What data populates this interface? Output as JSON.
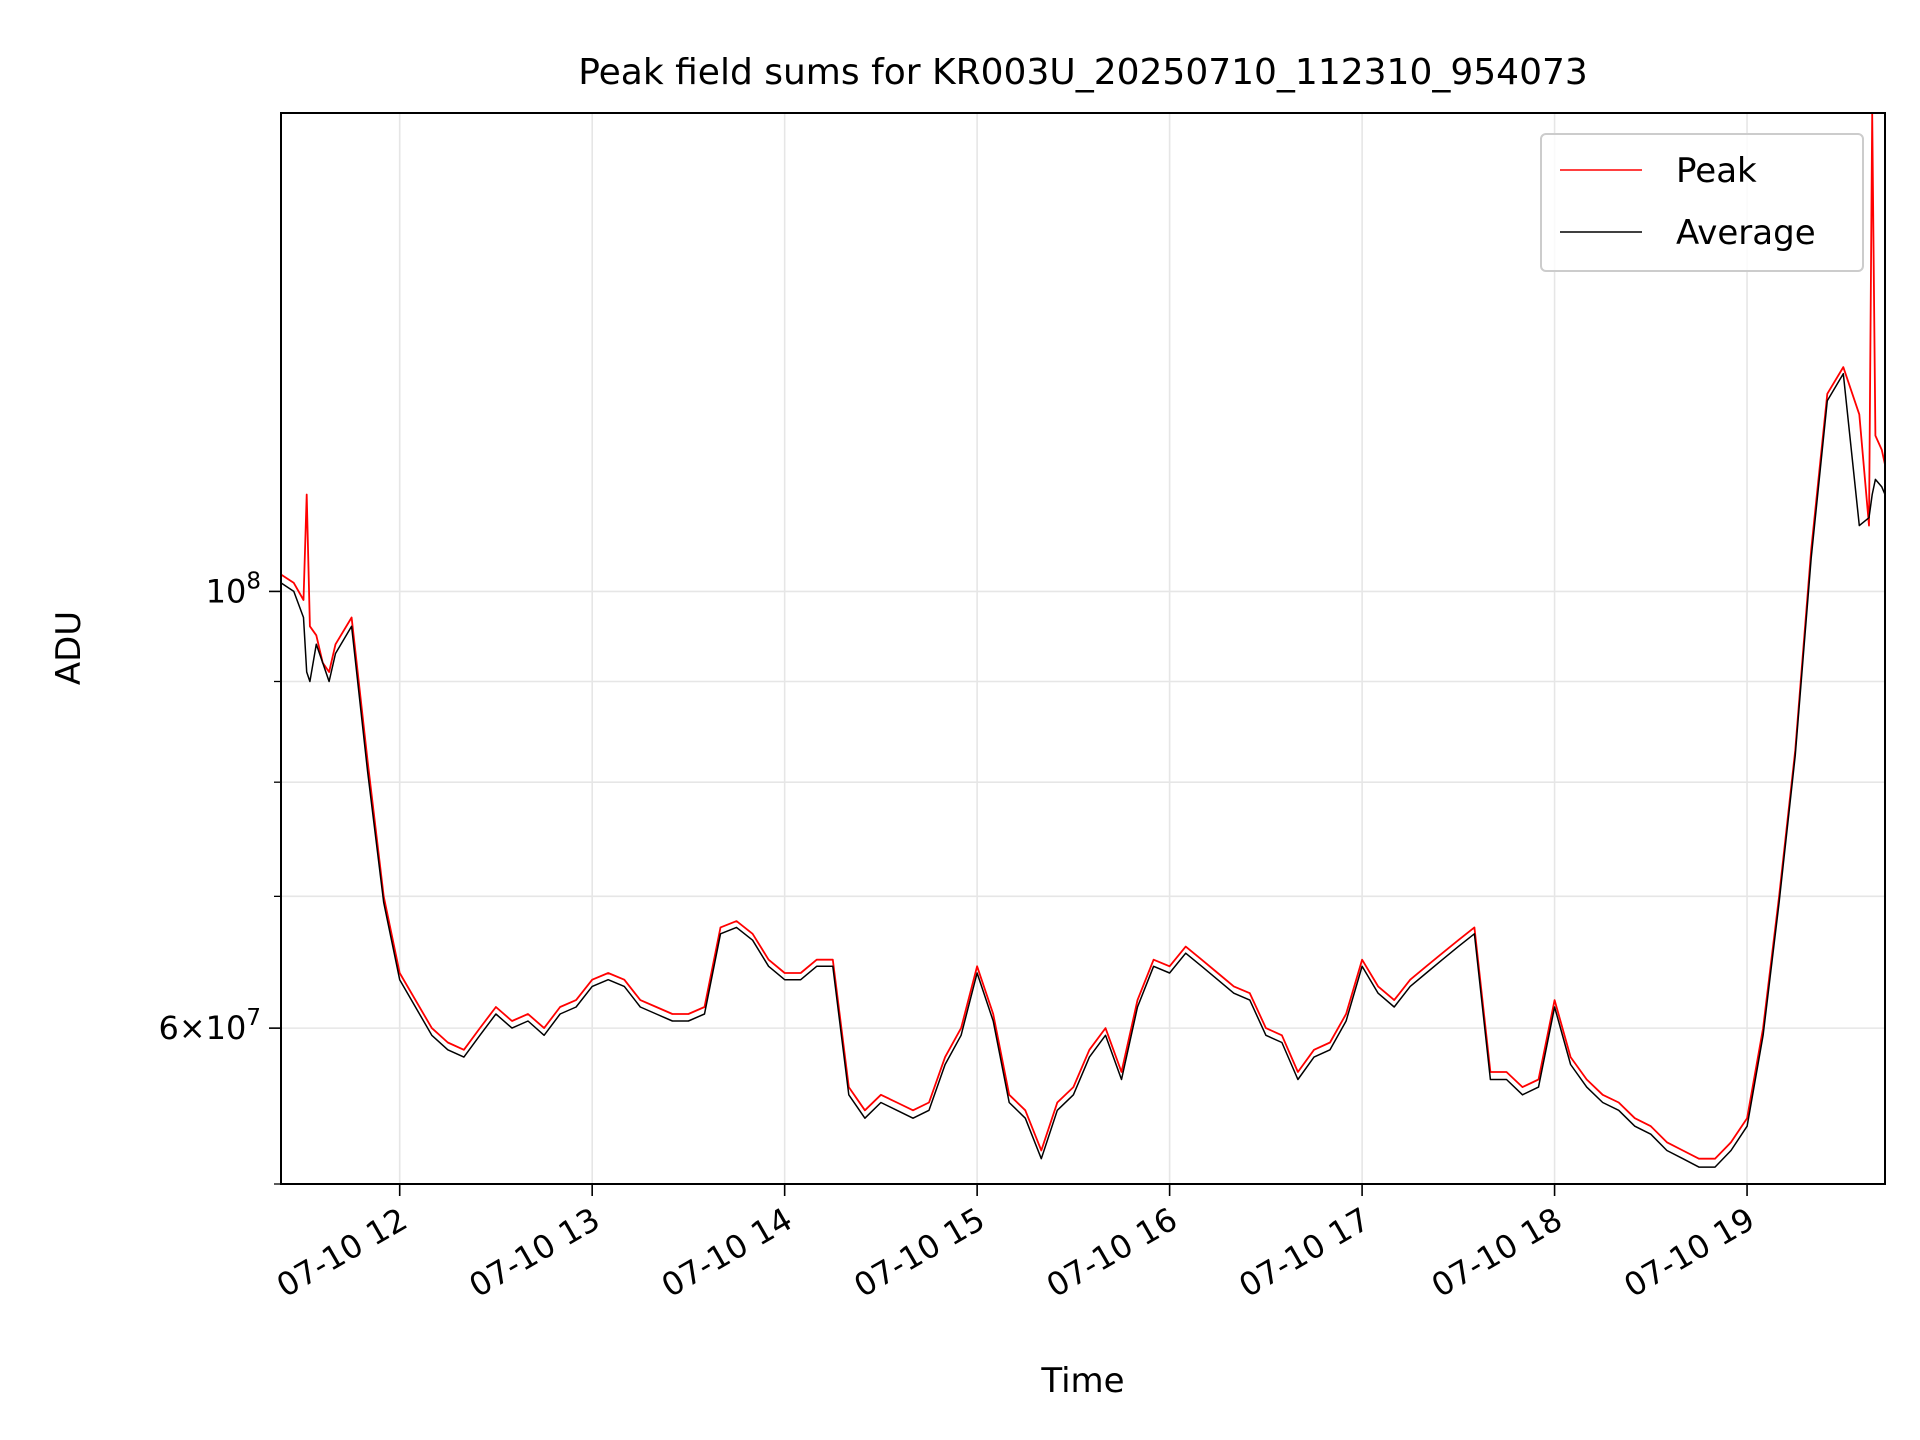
{
  "chart_data": {
    "type": "line",
    "title": "Peak field sums for KR003U_20250710_112310_954073",
    "xlabel": "Time",
    "ylabel": "ADU",
    "yscale": "log",
    "grid": true,
    "legend_position": "top-right",
    "xlim": [
      "2025-07-10 11:23",
      "2025-07-10 19:43"
    ],
    "ylim": [
      50000000,
      175000000
    ],
    "x_ticks": [
      "2025-07-10 12:00",
      "2025-07-10 13:00",
      "2025-07-10 14:00",
      "2025-07-10 15:00",
      "2025-07-10 16:00",
      "2025-07-10 17:00",
      "2025-07-10 18:00",
      "2025-07-10 19:00"
    ],
    "x_tick_labels": [
      "07-10 12",
      "07-10 13",
      "07-10 14",
      "07-10 15",
      "07-10 16",
      "07-10 17",
      "07-10 18",
      "07-10 19"
    ],
    "y_major_ticks": [
      {
        "value": 60000000,
        "mantissa": "6",
        "base": "10",
        "exp": "7"
      },
      {
        "value": 100000000,
        "mantissa": "",
        "base": "10",
        "exp": "8"
      }
    ],
    "y_minor_ticks": [
      50000000,
      70000000,
      80000000,
      90000000
    ],
    "series": [
      {
        "name": "Peak",
        "color": "#ff0000",
        "x": [
          "2025-07-10 11:23",
          "2025-07-10 11:27",
          "2025-07-10 11:30",
          "2025-07-10 11:31",
          "2025-07-10 11:32",
          "2025-07-10 11:34",
          "2025-07-10 11:36",
          "2025-07-10 11:38",
          "2025-07-10 11:40",
          "2025-07-10 11:45",
          "2025-07-10 11:50",
          "2025-07-10 11:55",
          "2025-07-10 12:00",
          "2025-07-10 12:10",
          "2025-07-10 12:15",
          "2025-07-10 12:20",
          "2025-07-10 12:25",
          "2025-07-10 12:30",
          "2025-07-10 12:35",
          "2025-07-10 12:40",
          "2025-07-10 12:45",
          "2025-07-10 12:50",
          "2025-07-10 12:55",
          "2025-07-10 13:00",
          "2025-07-10 13:05",
          "2025-07-10 13:10",
          "2025-07-10 13:15",
          "2025-07-10 13:20",
          "2025-07-10 13:25",
          "2025-07-10 13:30",
          "2025-07-10 13:35",
          "2025-07-10 13:40",
          "2025-07-10 13:45",
          "2025-07-10 13:50",
          "2025-07-10 13:55",
          "2025-07-10 14:00",
          "2025-07-10 14:05",
          "2025-07-10 14:10",
          "2025-07-10 14:15",
          "2025-07-10 14:20",
          "2025-07-10 14:25",
          "2025-07-10 14:30",
          "2025-07-10 14:35",
          "2025-07-10 14:40",
          "2025-07-10 14:45",
          "2025-07-10 14:50",
          "2025-07-10 14:55",
          "2025-07-10 15:00",
          "2025-07-10 15:05",
          "2025-07-10 15:10",
          "2025-07-10 15:15",
          "2025-07-10 15:20",
          "2025-07-10 15:25",
          "2025-07-10 15:30",
          "2025-07-10 15:35",
          "2025-07-10 15:40",
          "2025-07-10 15:45",
          "2025-07-10 15:50",
          "2025-07-10 15:55",
          "2025-07-10 16:00",
          "2025-07-10 16:05",
          "2025-07-10 16:10",
          "2025-07-10 16:15",
          "2025-07-10 16:20",
          "2025-07-10 16:25",
          "2025-07-10 16:30",
          "2025-07-10 16:35",
          "2025-07-10 16:40",
          "2025-07-10 16:45",
          "2025-07-10 16:50",
          "2025-07-10 16:55",
          "2025-07-10 17:00",
          "2025-07-10 17:05",
          "2025-07-10 17:10",
          "2025-07-10 17:15",
          "2025-07-10 17:20",
          "2025-07-10 17:25",
          "2025-07-10 17:30",
          "2025-07-10 17:35",
          "2025-07-10 17:40",
          "2025-07-10 17:45",
          "2025-07-10 17:50",
          "2025-07-10 17:55",
          "2025-07-10 18:00",
          "2025-07-10 18:05",
          "2025-07-10 18:10",
          "2025-07-10 18:15",
          "2025-07-10 18:20",
          "2025-07-10 18:25",
          "2025-07-10 18:30",
          "2025-07-10 18:35",
          "2025-07-10 18:40",
          "2025-07-10 18:45",
          "2025-07-10 18:50",
          "2025-07-10 18:55",
          "2025-07-10 19:00",
          "2025-07-10 19:05",
          "2025-07-10 19:10",
          "2025-07-10 19:15",
          "2025-07-10 19:20",
          "2025-07-10 19:25",
          "2025-07-10 19:30",
          "2025-07-10 19:35",
          "2025-07-10 19:38",
          "2025-07-10 19:39",
          "2025-07-10 19:40",
          "2025-07-10 19:42",
          "2025-07-10 19:43"
        ],
        "values": [
          102000000,
          101000000,
          99000000,
          112000000,
          96000000,
          95000000,
          92000000,
          91000000,
          94000000,
          97000000,
          82000000,
          70000000,
          64000000,
          60000000,
          59000000,
          58500000,
          60000000,
          61500000,
          60500000,
          61000000,
          60000000,
          61500000,
          62000000,
          63500000,
          64000000,
          63500000,
          62000000,
          61500000,
          61000000,
          61000000,
          61500000,
          67500000,
          68000000,
          67000000,
          65000000,
          64000000,
          64000000,
          65000000,
          65000000,
          56000000,
          54500000,
          55500000,
          55000000,
          54500000,
          55000000,
          58000000,
          60000000,
          64500000,
          61000000,
          55500000,
          54500000,
          52000000,
          55000000,
          56000000,
          58500000,
          60000000,
          57000000,
          62000000,
          65000000,
          64500000,
          66000000,
          65000000,
          64000000,
          63000000,
          62500000,
          60000000,
          59500000,
          57000000,
          58500000,
          59000000,
          61000000,
          65000000,
          63000000,
          62000000,
          63500000,
          64500000,
          65500000,
          66500000,
          67500000,
          57000000,
          57000000,
          56000000,
          56500000,
          62000000,
          58000000,
          56500000,
          55500000,
          55000000,
          54000000,
          53500000,
          52500000,
          52000000,
          51500000,
          51500000,
          52500000,
          54000000,
          60000000,
          70000000,
          83000000,
          105000000,
          126000000,
          130000000,
          123000000,
          108000000,
          175000000,
          120000000,
          118000000,
          116000000
        ]
      },
      {
        "name": "Average",
        "color": "#000000",
        "x": [
          "2025-07-10 11:23",
          "2025-07-10 11:27",
          "2025-07-10 11:30",
          "2025-07-10 11:31",
          "2025-07-10 11:32",
          "2025-07-10 11:34",
          "2025-07-10 11:36",
          "2025-07-10 11:38",
          "2025-07-10 11:40",
          "2025-07-10 11:45",
          "2025-07-10 11:50",
          "2025-07-10 11:55",
          "2025-07-10 12:00",
          "2025-07-10 12:10",
          "2025-07-10 12:15",
          "2025-07-10 12:20",
          "2025-07-10 12:25",
          "2025-07-10 12:30",
          "2025-07-10 12:35",
          "2025-07-10 12:40",
          "2025-07-10 12:45",
          "2025-07-10 12:50",
          "2025-07-10 12:55",
          "2025-07-10 13:00",
          "2025-07-10 13:05",
          "2025-07-10 13:10",
          "2025-07-10 13:15",
          "2025-07-10 13:20",
          "2025-07-10 13:25",
          "2025-07-10 13:30",
          "2025-07-10 13:35",
          "2025-07-10 13:40",
          "2025-07-10 13:45",
          "2025-07-10 13:50",
          "2025-07-10 13:55",
          "2025-07-10 14:00",
          "2025-07-10 14:05",
          "2025-07-10 14:10",
          "2025-07-10 14:15",
          "2025-07-10 14:20",
          "2025-07-10 14:25",
          "2025-07-10 14:30",
          "2025-07-10 14:35",
          "2025-07-10 14:40",
          "2025-07-10 14:45",
          "2025-07-10 14:50",
          "2025-07-10 14:55",
          "2025-07-10 15:00",
          "2025-07-10 15:05",
          "2025-07-10 15:10",
          "2025-07-10 15:15",
          "2025-07-10 15:20",
          "2025-07-10 15:25",
          "2025-07-10 15:30",
          "2025-07-10 15:35",
          "2025-07-10 15:40",
          "2025-07-10 15:45",
          "2025-07-10 15:50",
          "2025-07-10 15:55",
          "2025-07-10 16:00",
          "2025-07-10 16:05",
          "2025-07-10 16:10",
          "2025-07-10 16:15",
          "2025-07-10 16:20",
          "2025-07-10 16:25",
          "2025-07-10 16:30",
          "2025-07-10 16:35",
          "2025-07-10 16:40",
          "2025-07-10 16:45",
          "2025-07-10 16:50",
          "2025-07-10 16:55",
          "2025-07-10 17:00",
          "2025-07-10 17:05",
          "2025-07-10 17:10",
          "2025-07-10 17:15",
          "2025-07-10 17:20",
          "2025-07-10 17:25",
          "2025-07-10 17:30",
          "2025-07-10 17:35",
          "2025-07-10 17:40",
          "2025-07-10 17:45",
          "2025-07-10 17:50",
          "2025-07-10 17:55",
          "2025-07-10 18:00",
          "2025-07-10 18:05",
          "2025-07-10 18:10",
          "2025-07-10 18:15",
          "2025-07-10 18:20",
          "2025-07-10 18:25",
          "2025-07-10 18:30",
          "2025-07-10 18:35",
          "2025-07-10 18:40",
          "2025-07-10 18:45",
          "2025-07-10 18:50",
          "2025-07-10 18:55",
          "2025-07-10 19:00",
          "2025-07-10 19:05",
          "2025-07-10 19:10",
          "2025-07-10 19:15",
          "2025-07-10 19:20",
          "2025-07-10 19:25",
          "2025-07-10 19:30",
          "2025-07-10 19:35",
          "2025-07-10 19:38",
          "2025-07-10 19:39",
          "2025-07-10 19:40",
          "2025-07-10 19:42",
          "2025-07-10 19:43"
        ],
        "values": [
          101000000,
          100000000,
          97000000,
          91000000,
          90000000,
          94000000,
          92000000,
          90000000,
          93000000,
          96000000,
          81000000,
          69500000,
          63500000,
          59500000,
          58500000,
          58000000,
          59500000,
          61000000,
          60000000,
          60500000,
          59500000,
          61000000,
          61500000,
          63000000,
          63500000,
          63000000,
          61500000,
          61000000,
          60500000,
          60500000,
          61000000,
          67000000,
          67500000,
          66500000,
          64500000,
          63500000,
          63500000,
          64500000,
          64500000,
          55500000,
          54000000,
          55000000,
          54500000,
          54000000,
          54500000,
          57500000,
          59500000,
          64000000,
          60500000,
          55000000,
          54000000,
          51500000,
          54500000,
          55500000,
          58000000,
          59500000,
          56500000,
          61500000,
          64500000,
          64000000,
          65500000,
          64500000,
          63500000,
          62500000,
          62000000,
          59500000,
          59000000,
          56500000,
          58000000,
          58500000,
          60500000,
          64500000,
          62500000,
          61500000,
          63000000,
          64000000,
          65000000,
          66000000,
          67000000,
          56500000,
          56500000,
          55500000,
          56000000,
          61500000,
          57500000,
          56000000,
          55000000,
          54500000,
          53500000,
          53000000,
          52000000,
          51500000,
          51000000,
          51000000,
          52000000,
          53500000,
          59500000,
          69500000,
          82500000,
          104000000,
          125000000,
          129000000,
          108000000,
          109000000,
          112000000,
          114000000,
          113000000,
          112000000
        ]
      }
    ]
  }
}
